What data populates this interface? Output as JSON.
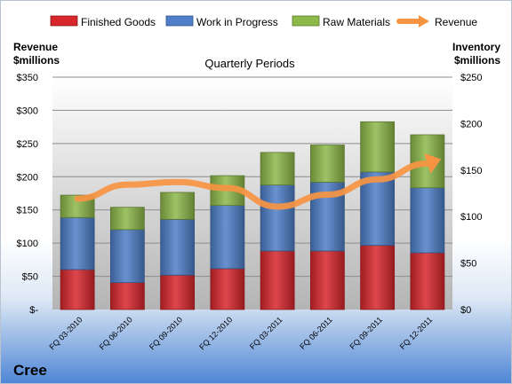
{
  "company": "Cree",
  "chart_data": {
    "type": "bar",
    "stacked": true,
    "title": "Quarterly Periods",
    "left_axis_label": [
      "Revenue",
      "$millions"
    ],
    "right_axis_label": [
      "Inventory",
      "$millions"
    ],
    "categories": [
      "FQ 03-2010",
      "FQ 06-2010",
      "FQ 09-2010",
      "FQ 12-2010",
      "FQ 03-2011",
      "FQ 06-2011",
      "FQ 09-2011",
      "FQ 12-2011"
    ],
    "left_ticks": [
      "$-",
      "$50",
      "$100",
      "$150",
      "$200",
      "$250",
      "$300",
      "$350"
    ],
    "right_ticks": [
      "$0",
      "$50",
      "$100",
      "$150",
      "$200",
      "$250"
    ],
    "ylim_left": [
      0,
      350
    ],
    "ylim_right": [
      0,
      250
    ],
    "series": [
      {
        "name": "Finished Goods",
        "axis": "right",
        "color": "#d7262c",
        "values": [
          43,
          29,
          37,
          44,
          63,
          63,
          69,
          61
        ]
      },
      {
        "name": "Work in Progress",
        "axis": "right",
        "color": "#4f7fc8",
        "values": [
          56,
          57,
          60,
          68,
          71,
          74,
          79,
          70
        ]
      },
      {
        "name": "Raw Materials",
        "axis": "right",
        "color": "#8db84a",
        "values": [
          24,
          24,
          29,
          32,
          35,
          40,
          54,
          57
        ]
      },
      {
        "name": "Revenue",
        "axis": "left",
        "type": "line",
        "color": "#f79443",
        "values": [
          167,
          188,
          192,
          183,
          155,
          173,
          196,
          220
        ]
      }
    ],
    "legend_position": "top",
    "grid": true
  }
}
